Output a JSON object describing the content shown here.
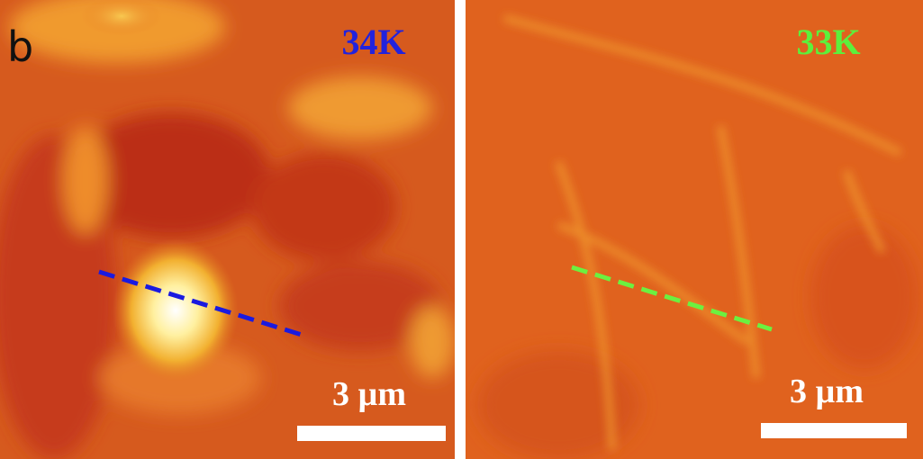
{
  "panel_label": "b",
  "panels": [
    {
      "temperature": "34K",
      "scale_bar": "3 µm"
    },
    {
      "temperature": "33K",
      "scale_bar": "3 µm"
    }
  ]
}
